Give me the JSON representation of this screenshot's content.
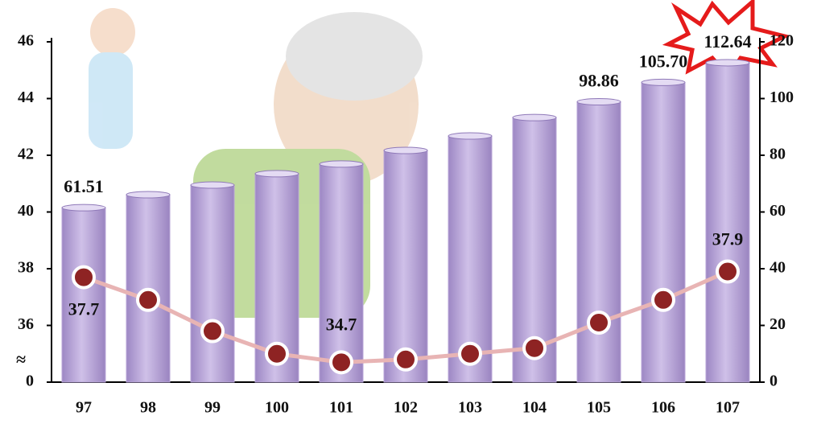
{
  "chart_data": {
    "type": "combo",
    "categories": [
      "97",
      "98",
      "99",
      "100",
      "101",
      "102",
      "103",
      "104",
      "105",
      "106",
      "107"
    ],
    "series": [
      {
        "type": "bar",
        "axis": "y2",
        "color": "#b9a6d8",
        "values": [
          61.51,
          66.1,
          69.5,
          73.5,
          76.9,
          81.7,
          86.8,
          93.3,
          98.86,
          105.7,
          112.64
        ],
        "value_labels": [
          "61.51",
          null,
          null,
          null,
          null,
          null,
          null,
          null,
          "98.86",
          "105.70",
          "112.64"
        ]
      },
      {
        "type": "line",
        "axis": "y",
        "color": "#e8b4b4",
        "marker_color": "#8e2323",
        "values": [
          37.7,
          36.9,
          35.8,
          35.0,
          34.7,
          34.8,
          35.0,
          35.2,
          36.1,
          36.9,
          37.9
        ],
        "value_labels": [
          "37.7",
          null,
          null,
          null,
          "34.7",
          null,
          null,
          null,
          null,
          null,
          "37.9"
        ]
      }
    ],
    "ylim": [
      0,
      46
    ],
    "ybreak": [
      0,
      34
    ],
    "yticks": [
      0,
      36,
      38,
      40,
      42,
      44,
      46
    ],
    "y2lim": [
      0,
      120
    ],
    "y2ticks": [
      0,
      20,
      40,
      60,
      80,
      100,
      120
    ],
    "break_symbol": "≈"
  }
}
